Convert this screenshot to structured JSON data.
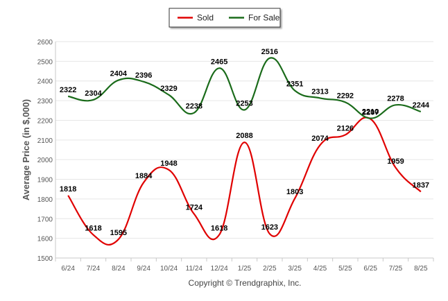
{
  "chart_data": {
    "type": "line",
    "categories": [
      "6/24",
      "7/24",
      "8/24",
      "9/24",
      "10/24",
      "11/24",
      "12/24",
      "1/25",
      "2/25",
      "3/25",
      "4/25",
      "5/25",
      "6/25",
      "7/25",
      "8/25"
    ],
    "series": [
      {
        "name": "Sold",
        "color": "#e00000",
        "values": [
          1818,
          1618,
          1595,
          1884,
          1948,
          1724,
          1618,
          2088,
          1623,
          1803,
          2074,
          2126,
          2207,
          1959,
          1837
        ]
      },
      {
        "name": "For Sale",
        "color": "#1a6b1a",
        "values": [
          2322,
          2304,
          2404,
          2396,
          2329,
          2238,
          2465,
          2253,
          2516,
          2351,
          2313,
          2292,
          2210,
          2278,
          2244
        ]
      }
    ],
    "ylabel": "Average Price (in $,000)",
    "xlabel": "",
    "ylim": [
      1500,
      2600
    ],
    "yticks": [
      1500,
      1600,
      1700,
      1800,
      1900,
      2000,
      2100,
      2200,
      2300,
      2400,
      2500,
      2600
    ],
    "grid": true,
    "legend_position": "top-center"
  },
  "footer": {
    "copyright": "Copyright © Trendgraphix, Inc."
  }
}
